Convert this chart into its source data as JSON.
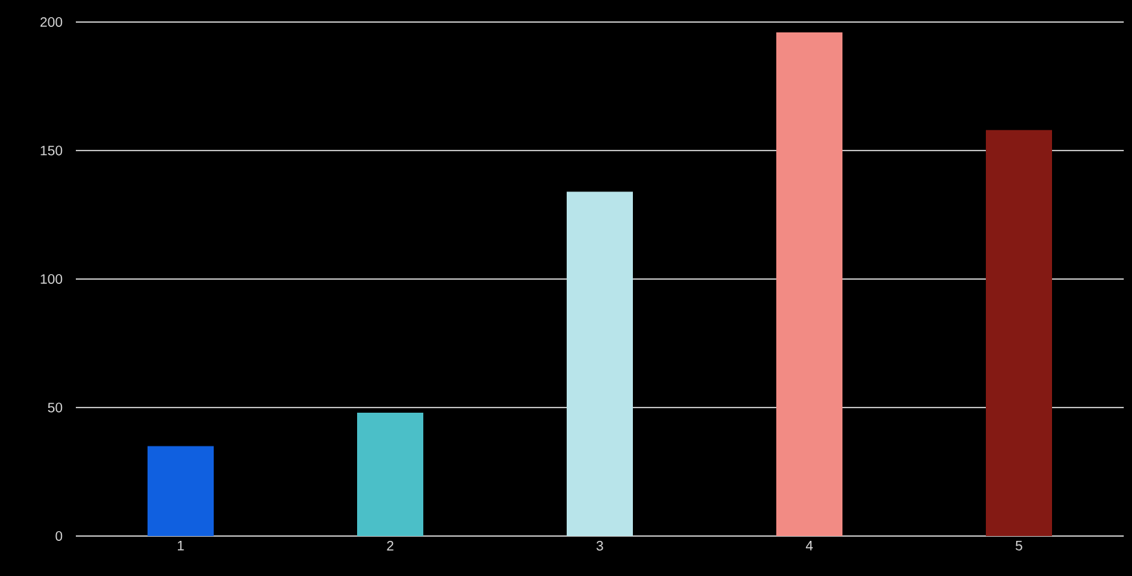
{
  "chart_data": {
    "type": "bar",
    "categories": [
      "1",
      "2",
      "3",
      "4",
      "5"
    ],
    "values": [
      35,
      48,
      134,
      196,
      158
    ],
    "colors": [
      "#1060e0",
      "#4bbfc8",
      "#b8e4ea",
      "#f28b84",
      "#841a14"
    ],
    "ylim": [
      0,
      200
    ],
    "yticks": [
      0,
      50,
      100,
      150,
      200
    ],
    "grid": "y"
  }
}
